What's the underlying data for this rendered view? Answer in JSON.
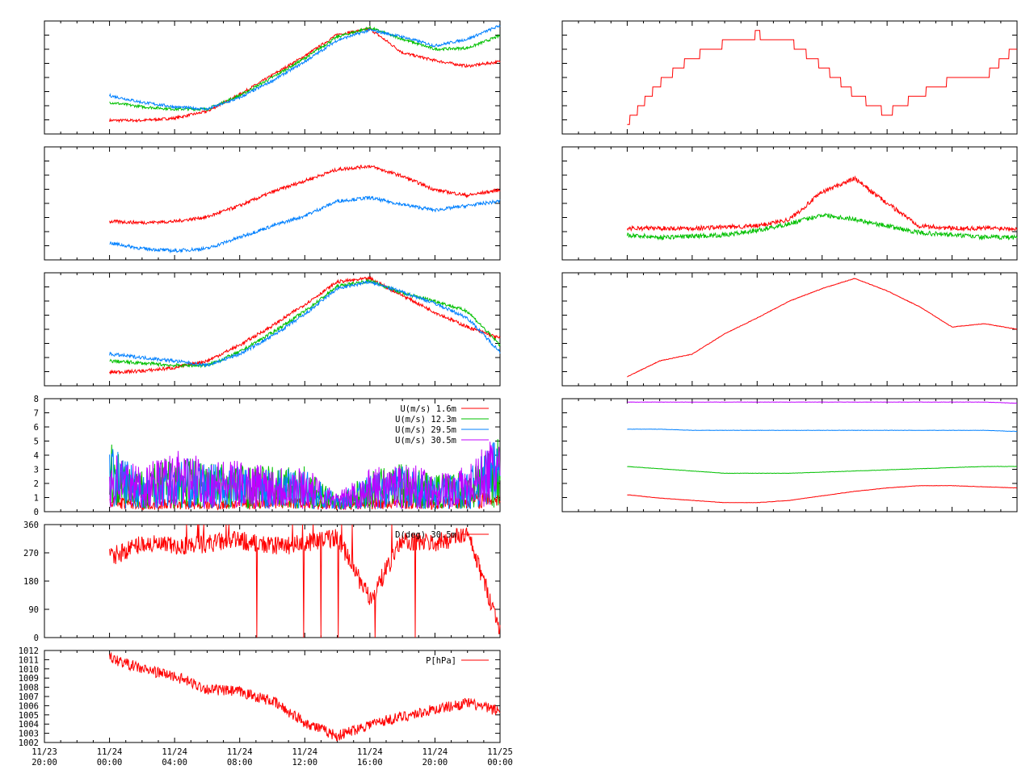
{
  "chart_data": [
    {
      "id": "temp-left",
      "type": "line",
      "xlabel": "",
      "ylabel": "",
      "x": [
        "11/24 00:00",
        "11/24 02:00",
        "11/24 04:00",
        "11/24 06:00",
        "11/24 08:00",
        "11/24 10:00",
        "11/24 12:00",
        "11/24 14:00",
        "11/24 16:00",
        "11/24 18:00",
        "11/24 20:00",
        "11/24 22:00",
        "11/25 00:00"
      ],
      "series": [
        {
          "color": "#ff0000",
          "values": [
            0.12,
            0.12,
            0.14,
            0.2,
            0.35,
            0.52,
            0.69,
            0.88,
            0.93,
            0.72,
            0.65,
            0.6,
            0.64
          ]
        },
        {
          "color": "#00c000",
          "values": [
            0.28,
            0.24,
            0.22,
            0.22,
            0.34,
            0.5,
            0.67,
            0.86,
            0.94,
            0.84,
            0.75,
            0.76,
            0.87
          ]
        },
        {
          "color": "#0080ff",
          "values": [
            0.34,
            0.28,
            0.24,
            0.22,
            0.32,
            0.47,
            0.64,
            0.83,
            0.92,
            0.86,
            0.78,
            0.84,
            0.96
          ]
        }
      ]
    },
    {
      "id": "hum-left",
      "type": "line",
      "xlabel": "",
      "ylabel": "",
      "x": [
        "11/24 00:00",
        "11/24 02:00",
        "11/24 04:00",
        "11/24 06:00",
        "11/24 08:00",
        "11/24 10:00",
        "11/24 12:00",
        "11/24 14:00",
        "11/24 16:00",
        "11/24 18:00",
        "11/24 20:00",
        "11/24 22:00",
        "11/25 00:00"
      ],
      "series": [
        {
          "color": "#ff0000",
          "values": [
            0.34,
            0.33,
            0.34,
            0.38,
            0.48,
            0.6,
            0.7,
            0.8,
            0.83,
            0.74,
            0.62,
            0.57,
            0.62
          ]
        },
        {
          "color": "#0080ff",
          "values": [
            0.15,
            0.1,
            0.08,
            0.1,
            0.2,
            0.3,
            0.39,
            0.52,
            0.55,
            0.49,
            0.44,
            0.48,
            0.52
          ]
        }
      ]
    },
    {
      "id": "temp2-left",
      "type": "line",
      "xlabel": "",
      "ylabel": "",
      "x": [
        "11/24 00:00",
        "11/24 02:00",
        "11/24 04:00",
        "11/24 06:00",
        "11/24 08:00",
        "11/24 10:00",
        "11/24 12:00",
        "11/24 14:00",
        "11/24 16:00",
        "11/24 18:00",
        "11/24 20:00",
        "11/24 22:00",
        "11/25 00:00"
      ],
      "series": [
        {
          "color": "#ff0000",
          "values": [
            0.12,
            0.13,
            0.16,
            0.22,
            0.36,
            0.53,
            0.72,
            0.92,
            0.95,
            0.8,
            0.65,
            0.52,
            0.42
          ]
        },
        {
          "color": "#00c000",
          "values": [
            0.22,
            0.2,
            0.18,
            0.18,
            0.3,
            0.47,
            0.66,
            0.88,
            0.93,
            0.82,
            0.75,
            0.66,
            0.36
          ]
        },
        {
          "color": "#0080ff",
          "values": [
            0.28,
            0.25,
            0.22,
            0.18,
            0.28,
            0.44,
            0.63,
            0.86,
            0.92,
            0.83,
            0.73,
            0.6,
            0.3
          ]
        }
      ]
    },
    {
      "id": "wind-speed",
      "type": "line",
      "xlabel": "",
      "ylabel": "",
      "ylim": [
        0,
        8
      ],
      "yticks": [
        "0",
        "1",
        "2",
        "3",
        "4",
        "5",
        "6",
        "7",
        "8"
      ],
      "x": [
        "11/24 00:00",
        "11/24 02:00",
        "11/24 04:00",
        "11/24 06:00",
        "11/24 08:00",
        "11/24 10:00",
        "11/24 12:00",
        "11/24 14:00",
        "11/24 16:00",
        "11/24 18:00",
        "11/24 20:00",
        "11/24 22:00",
        "11/25 00:00"
      ],
      "legend_position": "top-right",
      "series": [
        {
          "name": "U(m/s)  1.6m",
          "color": "#ff0000",
          "values": [
            0.7,
            0.4,
            0.5,
            0.4,
            0.5,
            0.6,
            0.5,
            0.4,
            0.5,
            0.6,
            0.5,
            0.7,
            0.9
          ]
        },
        {
          "name": "U(m/s) 12.3m",
          "color": "#00c000",
          "values": [
            2.6,
            1.6,
            2.2,
            1.9,
            1.8,
            1.7,
            1.7,
            0.6,
            1.5,
            1.8,
            1.4,
            1.6,
            3.0
          ]
        },
        {
          "name": "U(m/s) 29.5m",
          "color": "#0080ff",
          "values": [
            2.5,
            1.6,
            2.1,
            1.8,
            1.7,
            1.6,
            1.6,
            0.6,
            1.4,
            1.7,
            1.3,
            1.5,
            2.9
          ]
        },
        {
          "name": "U(m/s) 30.5m",
          "color": "#c000ff",
          "values": [
            2.4,
            1.7,
            2.3,
            2.0,
            1.9,
            1.8,
            1.7,
            0.7,
            1.6,
            1.9,
            1.5,
            1.7,
            3.2
          ]
        }
      ]
    },
    {
      "id": "wind-dir",
      "type": "line",
      "xlabel": "",
      "ylabel": "",
      "ylim": [
        0,
        360
      ],
      "yticks": [
        "0",
        "90",
        "180",
        "270",
        "360"
      ],
      "x": [
        "11/24 00:00",
        "11/24 02:00",
        "11/24 04:00",
        "11/24 06:00",
        "11/24 08:00",
        "11/24 10:00",
        "11/24 12:00",
        "11/24 14:00",
        "11/24 16:00",
        "11/24 18:00",
        "11/24 20:00",
        "11/24 22:00",
        "11/25 00:00"
      ],
      "legend_position": "top-right",
      "series": [
        {
          "name": "D(deg) 30.5m",
          "color": "#ff0000",
          "values": [
            255,
            300,
            290,
            300,
            310,
            290,
            300,
            320,
            120,
            310,
            300,
            330,
            30
          ]
        }
      ]
    },
    {
      "id": "pressure",
      "type": "line",
      "xlabel": "",
      "ylabel": "",
      "ylim": [
        1002,
        1012
      ],
      "yticks": [
        "1002",
        "1003",
        "1004",
        "1005",
        "1006",
        "1007",
        "1008",
        "1009",
        "1010",
        "1011",
        "1012"
      ],
      "x": [
        "11/24 00:00",
        "11/24 02:00",
        "11/24 04:00",
        "11/24 06:00",
        "11/24 08:00",
        "11/24 10:00",
        "11/24 12:00",
        "11/24 14:00",
        "11/24 16:00",
        "11/24 18:00",
        "11/24 20:00",
        "11/24 22:00",
        "11/25 00:00"
      ],
      "xticks": [
        "11/23\n20:00",
        "11/24\n00:00",
        "11/24\n04:00",
        "11/24\n08:00",
        "11/24\n12:00",
        "11/24\n16:00",
        "11/24\n20:00",
        "11/25\n00:00"
      ],
      "legend_position": "top-right",
      "series": [
        {
          "name": "P[hPa]",
          "color": "#ff0000",
          "values": [
            1011.2,
            1010.0,
            1009.2,
            1007.8,
            1007.5,
            1006.5,
            1004.2,
            1002.7,
            1004.0,
            1004.8,
            1005.6,
            1006.3,
            1005.4
          ]
        }
      ]
    },
    {
      "id": "radiation-right",
      "type": "line",
      "xlabel": "",
      "ylabel": "",
      "x": [
        "11/24 00:00",
        "11/24 02:00",
        "11/24 04:00",
        "11/24 06:00",
        "11/24 08:00",
        "11/24 10:00",
        "11/24 12:00",
        "11/24 14:00",
        "11/24 16:00",
        "11/24 18:00",
        "11/24 20:00",
        "11/24 22:00",
        "11/25 00:00"
      ],
      "series": [
        {
          "color": "#ff0000",
          "values": [
            0.1,
            0.45,
            0.68,
            0.8,
            0.88,
            0.82,
            0.6,
            0.35,
            0.18,
            0.35,
            0.48,
            0.5,
            0.78
          ]
        }
      ]
    },
    {
      "id": "turb-right",
      "type": "line",
      "xlabel": "",
      "ylabel": "",
      "x": [
        "11/24 00:00",
        "11/24 02:00",
        "11/24 04:00",
        "11/24 06:00",
        "11/24 08:00",
        "11/24 10:00",
        "11/24 12:00",
        "11/24 14:00",
        "11/24 16:00",
        "11/24 18:00",
        "11/24 20:00",
        "11/24 22:00",
        "11/25 00:00"
      ],
      "series": [
        {
          "color": "#ff0000",
          "values": [
            0.28,
            0.28,
            0.28,
            0.29,
            0.3,
            0.36,
            0.6,
            0.72,
            0.5,
            0.3,
            0.28,
            0.28,
            0.28
          ]
        },
        {
          "color": "#00c000",
          "values": [
            0.22,
            0.2,
            0.21,
            0.22,
            0.26,
            0.32,
            0.4,
            0.36,
            0.3,
            0.24,
            0.22,
            0.2,
            0.2
          ]
        }
      ]
    },
    {
      "id": "smooth-right",
      "type": "line",
      "xlabel": "",
      "ylabel": "",
      "x": [
        "11/24 00:00",
        "11/24 02:00",
        "11/24 04:00",
        "11/24 06:00",
        "11/24 08:00",
        "11/24 10:00",
        "11/24 12:00",
        "11/24 14:00",
        "11/24 16:00",
        "11/24 18:00",
        "11/24 20:00",
        "11/24 22:00",
        "11/25 00:00"
      ],
      "series": [
        {
          "color": "#ff0000",
          "values": [
            0.08,
            0.22,
            0.28,
            0.46,
            0.6,
            0.75,
            0.86,
            0.95,
            0.84,
            0.7,
            0.52,
            0.55,
            0.5
          ]
        }
      ]
    },
    {
      "id": "levels-right",
      "type": "line",
      "xlabel": "",
      "ylabel": "",
      "x": [
        "11/24 00:00",
        "11/24 02:00",
        "11/24 04:00",
        "11/24 06:00",
        "11/24 08:00",
        "11/24 10:00",
        "11/24 12:00",
        "11/24 14:00",
        "11/24 16:00",
        "11/24 18:00",
        "11/24 20:00",
        "11/24 22:00",
        "11/25 00:00"
      ],
      "series": [
        {
          "color": "#c000ff",
          "values": [
            0.97,
            0.97,
            0.97,
            0.97,
            0.97,
            0.97,
            0.97,
            0.97,
            0.97,
            0.97,
            0.97,
            0.97,
            0.96
          ]
        },
        {
          "color": "#0080ff",
          "values": [
            0.73,
            0.73,
            0.72,
            0.72,
            0.72,
            0.72,
            0.72,
            0.72,
            0.72,
            0.72,
            0.72,
            0.72,
            0.71
          ]
        },
        {
          "color": "#00c000",
          "values": [
            0.4,
            0.38,
            0.36,
            0.34,
            0.34,
            0.34,
            0.35,
            0.36,
            0.37,
            0.38,
            0.39,
            0.4,
            0.4
          ]
        },
        {
          "color": "#ff0000",
          "values": [
            0.15,
            0.12,
            0.1,
            0.08,
            0.08,
            0.1,
            0.14,
            0.18,
            0.21,
            0.23,
            0.23,
            0.22,
            0.21
          ]
        }
      ]
    }
  ]
}
